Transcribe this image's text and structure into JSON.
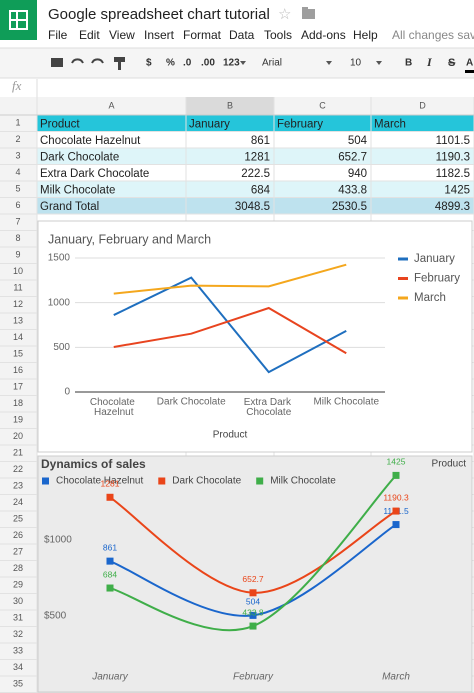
{
  "header": {
    "title": "Google spreadsheet chart tutorial",
    "menu": [
      "File",
      "Edit",
      "View",
      "Insert",
      "Format",
      "Data",
      "Tools",
      "Add-ons",
      "Help"
    ],
    "status": "All changes saved in Drive"
  },
  "toolbar": {
    "items": [
      "$",
      "%",
      ".0",
      ".00",
      "123",
      "Arial",
      "10",
      "B",
      "I",
      "S",
      "A"
    ]
  },
  "formula_bar": {
    "label": "fx"
  },
  "sheet": {
    "columns": [
      "A",
      "B",
      "C",
      "D"
    ],
    "row_numbers": [
      1,
      2,
      3,
      4,
      5,
      6,
      7,
      8,
      9,
      10,
      11,
      12,
      13,
      14,
      15,
      16,
      17,
      18,
      19,
      20,
      21,
      22,
      23,
      24,
      25,
      26,
      27,
      28,
      29,
      30,
      31,
      32,
      33,
      34,
      35
    ],
    "table": {
      "header": [
        "Product",
        "January",
        "February",
        "March"
      ],
      "rows": [
        [
          "Chocolate Hazelnut",
          861,
          504,
          1101.5
        ],
        [
          "Dark Chocolate",
          1281,
          652.7,
          1190.3
        ],
        [
          "Extra Dark Chocolate",
          222.5,
          940,
          1182.5
        ],
        [
          "Milk Chocolate",
          684,
          433.8,
          1425
        ],
        [
          "Grand Total",
          3048.5,
          2530.5,
          4899.3
        ]
      ]
    }
  },
  "chart_data": [
    {
      "type": "line",
      "title": "January, February and March",
      "categories": [
        "Chocolate Hazelnut",
        "Dark Chocolate",
        "Extra Dark Chocolate",
        "Milk Chocolate"
      ],
      "series": [
        {
          "name": "January",
          "color": "#1f6fbf",
          "values": [
            861,
            1281,
            222.5,
            684
          ]
        },
        {
          "name": "February",
          "color": "#e8441f",
          "values": [
            504,
            652.7,
            940,
            433.8
          ]
        },
        {
          "name": "March",
          "color": "#f4a71d",
          "values": [
            1101.5,
            1190.3,
            1182.5,
            1425
          ]
        }
      ],
      "ylim": [
        0,
        1500
      ],
      "yticks": [
        0,
        500,
        1000,
        1500
      ],
      "x_label": "Product",
      "legend": "right",
      "grid": true
    },
    {
      "type": "line",
      "smooth": true,
      "title": "Dynamics of sales",
      "legend_title": "Product",
      "categories": [
        "January",
        "February",
        "March"
      ],
      "series": [
        {
          "name": "Chocolate Hazelnut",
          "color": "#1a66cc",
          "values": [
            861,
            504,
            1101.5
          ]
        },
        {
          "name": "Dark Chocolate",
          "color": "#ea4519",
          "values": [
            1281,
            652.7,
            1190.3
          ]
        },
        {
          "name": "Milk Chocolate",
          "color": "#3fae49",
          "values": [
            684,
            433.8,
            1425
          ]
        }
      ],
      "ylim": [
        0,
        1500
      ],
      "yticks": [
        {
          "value": 500,
          "label": "$500"
        },
        {
          "value": 1000,
          "label": "$1000"
        }
      ],
      "legend": "top",
      "data_labels": true,
      "grid": false
    }
  ]
}
